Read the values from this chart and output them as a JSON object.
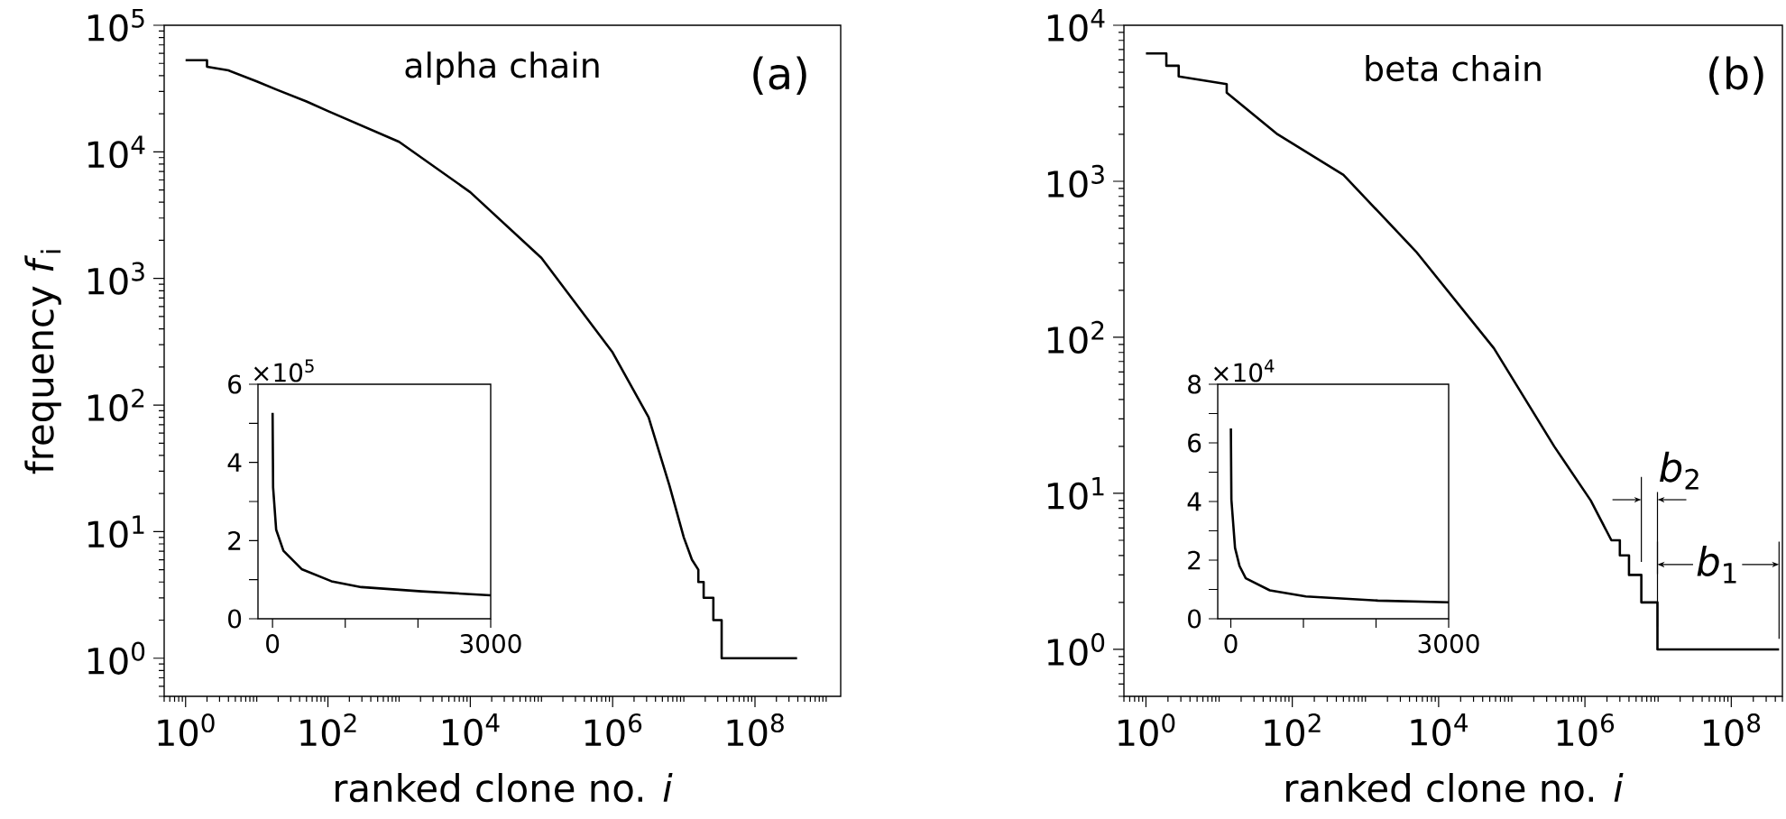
{
  "chart_data": [
    {
      "type": "line",
      "title": "alpha chain",
      "xlabel": "ranked clone no. *i*",
      "ylabel": "frequency *f*$_{i}$",
      "log": "xy",
      "xlim": [
        0.5,
        1600000000.0
      ],
      "ylim": [
        0.5,
        100000
      ],
      "xticks": [
        {
          "value": 1,
          "label": "10$^{0}$"
        },
        {
          "value": 100,
          "label": "10$^{2}$"
        },
        {
          "value": 10000,
          "label": "10$^{4}$"
        },
        {
          "value": 1000000,
          "label": "10$^{6}$"
        },
        {
          "value": 100000000,
          "label": "10$^{8}$"
        }
      ],
      "yticks": [
        {
          "value": 1,
          "label": "10$^{0}$"
        },
        {
          "value": 10,
          "label": "10$^{1}$"
        },
        {
          "value": 100,
          "label": "10$^{2}$"
        },
        {
          "value": 1000,
          "label": "10$^{3}$"
        },
        {
          "value": 10000,
          "label": "10$^{4}$"
        },
        {
          "value": 100000,
          "label": "10$^{5}$"
        }
      ],
      "annotations": [
        "(a)"
      ],
      "series": [
        {
          "color": "#000000",
          "x": [
            1,
            2,
            2,
            4,
            10,
            19,
            50,
            100,
            1000,
            10000,
            100000,
            1000000,
            3200000,
            6300000,
            10000000,
            13000000,
            16000000,
            16000000,
            19000000,
            19000000,
            26000000,
            26000000,
            34000000,
            34000000,
            390000000
          ],
          "values": [
            53000,
            53000,
            47000,
            44000,
            36000,
            31000,
            25000,
            21000,
            12000,
            4800,
            1450,
            260,
            80,
            23,
            9,
            6,
            5,
            4,
            4,
            3,
            3,
            2,
            2,
            1,
            1
          ]
        }
      ]
    },
    {
      "type": "line",
      "xlim": [
        -200,
        3000
      ],
      "ylim": [
        0,
        6
      ],
      "xticks": [
        0,
        {
          "value": 1000,
          "label": null
        },
        {
          "value": 2000,
          "label": null
        },
        3000
      ],
      "yticks": [
        0,
        {
          "value": 1,
          "label": null
        },
        2,
        {
          "value": 3,
          "label": null
        },
        4,
        {
          "value": 5,
          "label": null
        },
        6
      ],
      "annotations": [
        "×10$^{5}$"
      ],
      "series": [
        {
          "color": "#000000",
          "x": [
            1,
            8,
            50,
            150,
            400,
            810,
            1220,
            2050,
            3000
          ],
          "values": [
            5.27,
            3.36,
            2.28,
            1.74,
            1.27,
            0.96,
            0.81,
            0.7,
            0.6
          ]
        }
      ]
    },
    {
      "type": "line",
      "title": "beta chain",
      "xlabel": "ranked clone no. *i*",
      "log": "xy",
      "xlim": [
        0.5,
        500000000.0
      ],
      "ylim": [
        0.5,
        10000
      ],
      "xticks": [
        {
          "value": 1,
          "label": "10$^{0}$"
        },
        {
          "value": 100,
          "label": "10$^{2}$"
        },
        {
          "value": 10000,
          "label": "10$^{4}$"
        },
        {
          "value": 1000000,
          "label": "10$^{6}$"
        },
        {
          "value": 100000000,
          "label": "10$^{8}$"
        }
      ],
      "yticks": [
        {
          "value": 1,
          "label": "10$^{0}$"
        },
        {
          "value": 10,
          "label": "10$^{1}$"
        },
        {
          "value": 100,
          "label": "10$^{2}$"
        },
        {
          "value": 1000,
          "label": "10$^{3}$"
        },
        {
          "value": 10000,
          "label": "10$^{4}$"
        }
      ],
      "annotations": [
        "(b)",
        {
          "text": "*b*$_{2}$",
          "x": 20000000,
          "y": 14
        },
        {
          "text": "*b*$_{1}$",
          "x": 65000000,
          "y": 3.5
        }
      ],
      "series": [
        {
          "color": "#000000",
          "x": [
            1,
            1.9,
            1.9,
            2.8,
            2.8,
            12.7,
            12.7,
            63,
            500,
            4900,
            57000,
            380000,
            1200000,
            2300000,
            3000000,
            3000000,
            4000000,
            4000000,
            5900000,
            5900000,
            9800000,
            9800000,
            450000000
          ],
          "values": [
            6600,
            6600,
            5500,
            5500,
            4700,
            4200,
            3700,
            2000,
            1100,
            355,
            85,
            20,
            9,
            5,
            5,
            4,
            4,
            3,
            3,
            2,
            2,
            1,
            1
          ]
        }
      ]
    },
    {
      "type": "line",
      "xlim": [
        -180,
        3000
      ],
      "ylim": [
        0,
        8
      ],
      "xticks": [
        0,
        {
          "value": 1000,
          "label": null
        },
        {
          "value": 2000,
          "label": null
        },
        3000
      ],
      "yticks": [
        0,
        {
          "value": 1,
          "label": null
        },
        2,
        {
          "value": 3,
          "label": null
        },
        4,
        {
          "value": 5,
          "label": null
        },
        6,
        {
          "value": 7,
          "label": null
        },
        8
      ],
      "annotations": [
        "×10$^{4}$"
      ],
      "series": [
        {
          "color": "#000000",
          "x": [
            1,
            8,
            58,
            120,
            206,
            537,
            1033,
            2025,
            3000
          ],
          "values": [
            6.49,
            4.07,
            2.42,
            1.8,
            1.38,
            0.97,
            0.76,
            0.62,
            0.56
          ]
        }
      ]
    }
  ]
}
